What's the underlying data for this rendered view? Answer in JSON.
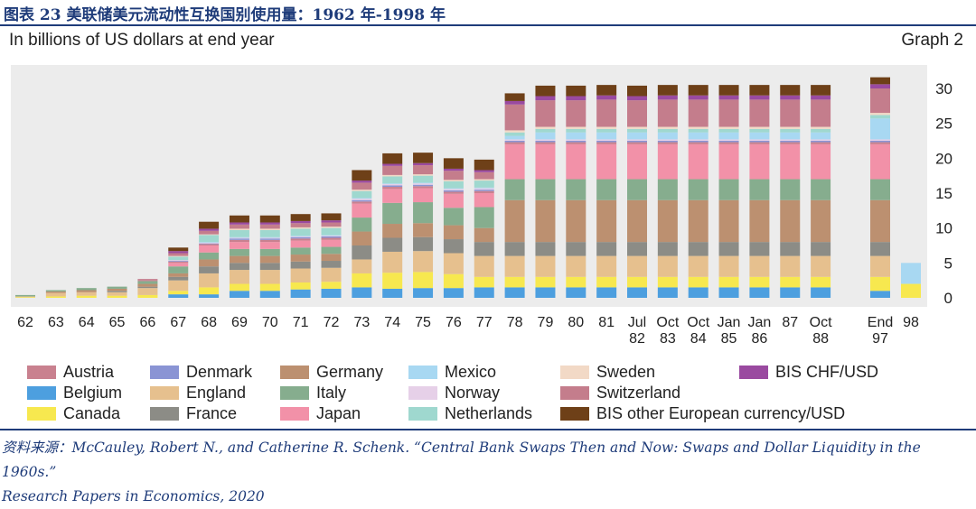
{
  "header": {
    "figure_title": "图表 23  美联储美元流动性互换国别使用量：1962 年-1998 年",
    "subtitle": "In billions of US dollars at end year",
    "graph_label": "Graph 2"
  },
  "source": {
    "line1": "资料来源：McCauley, Robert N., and Catherine R. Schenk. “Central Bank Swaps Then and Now: Swaps and Dollar Liquidity in the 1960s.”",
    "line2": "Research Papers in Economics, 2020"
  },
  "colors": {
    "Austria": "#c9818f",
    "Denmark": "#8a94d4",
    "Germany": "#bc9070",
    "Mexico": "#a8d8f2",
    "Sweden": "#f2d9c6",
    "BIS CHF/USD": "#9a4aa0",
    "Belgium": "#4d9fdf",
    "England": "#e6c08e",
    "Italy": "#86ad8e",
    "Norway": "#e6d0e8",
    "Switzerland": "#c47d8c",
    "Canada": "#f7e84f",
    "France": "#8c8c86",
    "Japan": "#f291a8",
    "Netherlands": "#9fd8cf",
    "BIS other European currency/USD": "#6e4018",
    "plot_background": "#ececec"
  },
  "legend": {
    "columns": [
      [
        "Austria",
        "Belgium",
        "Canada"
      ],
      [
        "Denmark",
        "England",
        "France"
      ],
      [
        "Germany",
        "Italy",
        "Japan"
      ],
      [
        "Mexico",
        "Norway",
        "Netherlands"
      ],
      [
        "Sweden",
        "Switzerland",
        "BIS other European currency/USD"
      ],
      [
        "BIS CHF/USD"
      ]
    ]
  },
  "chart_data": {
    "type": "bar",
    "stacked": true,
    "ylabel": "In billions of US dollars at end year",
    "ylim": [
      0,
      32
    ],
    "yticks": [
      0,
      5,
      10,
      15,
      20,
      25,
      30
    ],
    "y_axis_side": "right",
    "grid": false,
    "legend_position": "bottom",
    "categories": [
      {
        "l1": "62",
        "l2": ""
      },
      {
        "l1": "63",
        "l2": ""
      },
      {
        "l1": "64",
        "l2": ""
      },
      {
        "l1": "65",
        "l2": ""
      },
      {
        "l1": "66",
        "l2": ""
      },
      {
        "l1": "67",
        "l2": ""
      },
      {
        "l1": "68",
        "l2": ""
      },
      {
        "l1": "69",
        "l2": ""
      },
      {
        "l1": "70",
        "l2": ""
      },
      {
        "l1": "71",
        "l2": ""
      },
      {
        "l1": "72",
        "l2": ""
      },
      {
        "l1": "73",
        "l2": ""
      },
      {
        "l1": "74",
        "l2": ""
      },
      {
        "l1": "75",
        "l2": ""
      },
      {
        "l1": "76",
        "l2": ""
      },
      {
        "l1": "77",
        "l2": ""
      },
      {
        "l1": "78",
        "l2": ""
      },
      {
        "l1": "79",
        "l2": ""
      },
      {
        "l1": "80",
        "l2": ""
      },
      {
        "l1": "81",
        "l2": ""
      },
      {
        "l1": "Jul",
        "l2": "82"
      },
      {
        "l1": "Oct",
        "l2": "83"
      },
      {
        "l1": "Oct",
        "l2": "84"
      },
      {
        "l1": "Jan",
        "l2": "85"
      },
      {
        "l1": "Jan",
        "l2": "86"
      },
      {
        "l1": "87",
        "l2": ""
      },
      {
        "l1": "Oct",
        "l2": "88"
      },
      {
        "l1": "End",
        "l2": "97"
      },
      {
        "l1": "98",
        "l2": ""
      }
    ],
    "stack_order": [
      "Belgium",
      "Canada",
      "England",
      "France",
      "Germany",
      "Italy",
      "Japan",
      "Austria",
      "Denmark",
      "Norway",
      "Mexico",
      "Netherlands",
      "Sweden",
      "Switzerland",
      "BIS CHF/USD",
      "BIS other European currency/USD"
    ],
    "series": [
      {
        "name": "Belgium",
        "values": [
          0,
          0,
          0,
          0,
          0,
          0.5,
          0.5,
          1,
          1,
          1.2,
          1.3,
          1.5,
          1.3,
          1.4,
          1.4,
          1.5,
          1.5,
          1.5,
          1.5,
          1.5,
          1.5,
          1.5,
          1.5,
          1.5,
          1.5,
          1.5,
          1.5,
          1,
          0
        ]
      },
      {
        "name": "Canada",
        "values": [
          0.1,
          0.2,
          0.3,
          0.3,
          0.4,
          0.5,
          1,
          1,
          1,
          1,
          1,
          2,
          2.3,
          2.3,
          2,
          1.5,
          1.5,
          1.5,
          1.5,
          1.5,
          1.5,
          1.5,
          1.5,
          1.5,
          1.5,
          1.5,
          1.5,
          2,
          2
        ]
      },
      {
        "name": "England",
        "values": [
          0.1,
          0.5,
          0.5,
          0.5,
          1,
          1.5,
          2,
          2,
          2,
          2,
          2,
          2,
          3,
          3,
          3,
          3,
          3,
          3,
          3,
          3,
          3,
          3,
          3,
          3,
          3,
          3,
          3,
          3,
          0
        ]
      },
      {
        "name": "France",
        "values": [
          0,
          0,
          0,
          0.2,
          0.2,
          0.5,
          1,
          1,
          1,
          1,
          1,
          2,
          2,
          2,
          2,
          2,
          2,
          2,
          2,
          2,
          2,
          2,
          2,
          2,
          2,
          2,
          2,
          2,
          0
        ]
      },
      {
        "name": "Germany",
        "values": [
          0,
          0.2,
          0.3,
          0.3,
          0.4,
          0.5,
          1,
          1,
          1,
          1,
          1,
          2,
          2,
          2,
          2,
          2,
          6,
          6,
          6,
          6,
          6,
          6,
          6,
          6,
          6,
          6,
          6,
          6,
          0
        ]
      },
      {
        "name": "Italy",
        "values": [
          0.2,
          0.2,
          0.3,
          0.3,
          0.4,
          1,
          1,
          1,
          1,
          1,
          1,
          2,
          3,
          3,
          2.5,
          3,
          3,
          3,
          3,
          3,
          3,
          3,
          3,
          3,
          3,
          3,
          3,
          3,
          0
        ]
      },
      {
        "name": "Japan",
        "values": [
          0,
          0,
          0,
          0,
          0,
          0.5,
          1,
          1,
          1,
          1,
          1,
          2,
          2,
          2,
          2,
          2,
          5,
          5,
          5,
          5,
          5,
          5,
          5,
          5,
          5,
          5,
          5,
          5,
          0
        ]
      },
      {
        "name": "Austria",
        "values": [
          0,
          0,
          0,
          0,
          0.1,
          0.2,
          0.2,
          0.3,
          0.3,
          0.3,
          0.3,
          0.3,
          0.3,
          0.3,
          0.3,
          0.3,
          0.3,
          0.3,
          0.3,
          0.3,
          0.3,
          0.3,
          0.3,
          0.3,
          0.3,
          0.3,
          0.3,
          0.3,
          0
        ]
      },
      {
        "name": "Denmark",
        "values": [
          0,
          0,
          0,
          0,
          0,
          0.1,
          0.1,
          0.2,
          0.2,
          0.2,
          0.2,
          0.2,
          0.2,
          0.2,
          0.2,
          0.2,
          0.2,
          0.2,
          0.2,
          0.2,
          0.2,
          0.2,
          0.2,
          0.2,
          0.2,
          0.2,
          0.2,
          0.2,
          0
        ]
      },
      {
        "name": "Norway",
        "values": [
          0,
          0,
          0,
          0,
          0,
          0.1,
          0.1,
          0.1,
          0.1,
          0.1,
          0.1,
          0.2,
          0.2,
          0.2,
          0.2,
          0.2,
          0.2,
          0.2,
          0.2,
          0.2,
          0.2,
          0.2,
          0.2,
          0.2,
          0.2,
          0.2,
          0.2,
          0.2,
          0
        ]
      },
      {
        "name": "Mexico",
        "values": [
          0,
          0,
          0,
          0,
          0,
          0,
          0.1,
          0.1,
          0.1,
          0.1,
          0.1,
          0.1,
          0.1,
          0.1,
          0.1,
          0.1,
          0.5,
          1,
          1,
          1,
          1,
          1,
          1,
          1,
          1,
          1,
          1,
          3,
          3
        ]
      },
      {
        "name": "Netherlands",
        "values": [
          0,
          0,
          0,
          0,
          0,
          0.5,
          1,
          1,
          1,
          1,
          1,
          1,
          1,
          1,
          1,
          1,
          0.5,
          0.5,
          0.5,
          0.5,
          0.5,
          0.5,
          0.5,
          0.5,
          0.5,
          0.5,
          0.5,
          0.5,
          0
        ]
      },
      {
        "name": "Sweden",
        "values": [
          0,
          0,
          0,
          0,
          0,
          0.1,
          0.1,
          0.2,
          0.2,
          0.2,
          0.2,
          0.2,
          0.2,
          0.2,
          0.2,
          0.2,
          0.3,
          0.3,
          0.3,
          0.3,
          0.3,
          0.3,
          0.3,
          0.3,
          0.3,
          0.3,
          0.3,
          0.3,
          0
        ]
      },
      {
        "name": "Switzerland",
        "values": [
          0,
          0,
          0,
          0,
          0.2,
          0.4,
          0.5,
          0.6,
          0.6,
          0.6,
          0.6,
          1,
          1.3,
          1.3,
          1.3,
          1,
          3.7,
          3.8,
          3.8,
          3.9,
          3.8,
          3.9,
          3.9,
          3.9,
          3.9,
          3.9,
          3.9,
          3.5,
          0
        ]
      },
      {
        "name": "BIS CHF/USD",
        "values": [
          0,
          0,
          0,
          0,
          0,
          0.3,
          0.3,
          0.3,
          0.3,
          0.3,
          0.3,
          0.3,
          0.3,
          0.3,
          0.3,
          0.3,
          0.5,
          0.6,
          0.6,
          0.6,
          0.6,
          0.6,
          0.6,
          0.6,
          0.6,
          0.6,
          0.6,
          0.6,
          0
        ]
      },
      {
        "name": "BIS other European currency/USD",
        "values": [
          0,
          0,
          0,
          0,
          0,
          0.5,
          1,
          1,
          1,
          1,
          1,
          1.5,
          1.5,
          1.5,
          1.5,
          1.5,
          1.1,
          1.5,
          1.5,
          1.5,
          1.5,
          1.5,
          1.5,
          1.5,
          1.5,
          1.5,
          1.5,
          1,
          0
        ]
      }
    ]
  }
}
